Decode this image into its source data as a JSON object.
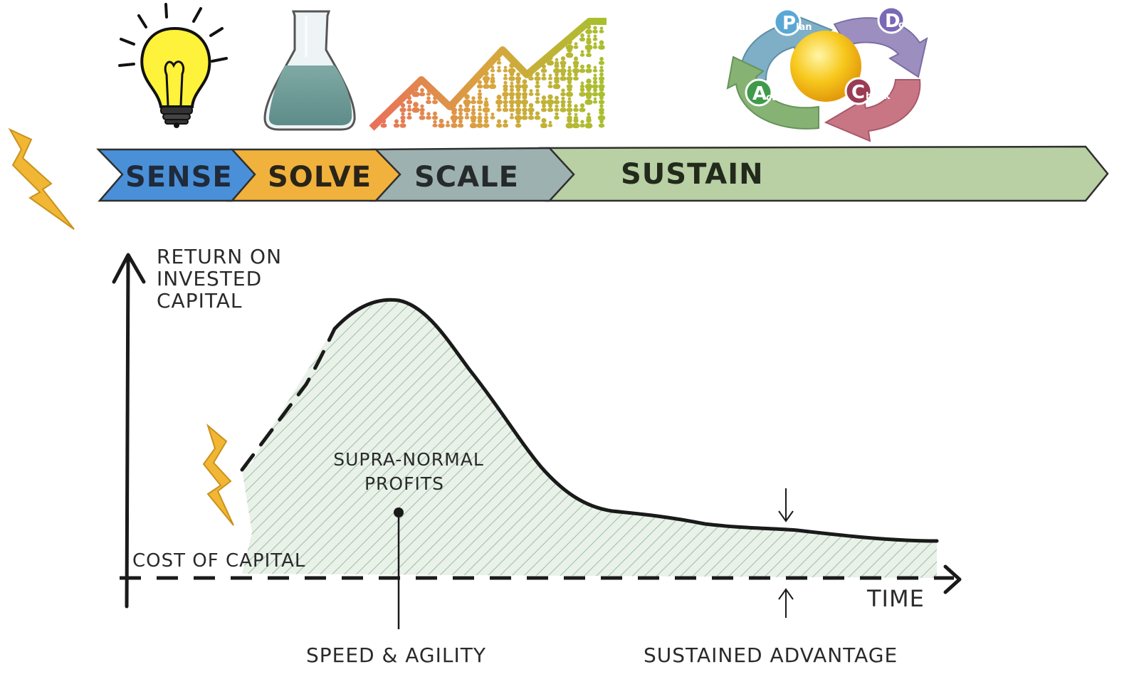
{
  "stages": [
    {
      "label": "SENSE",
      "color": "#4a90d9"
    },
    {
      "label": "SOLVE",
      "color": "#f0b23c"
    },
    {
      "label": "SCALE",
      "color": "#9eb1b1"
    },
    {
      "label": "SUSTAIN",
      "color": "#b9cfa4"
    }
  ],
  "icons": {
    "idea": "lightbulb-icon",
    "experiment": "flask-icon",
    "growth": "growth-chart-icon",
    "cycle": "pdca-cycle-icon",
    "disruption": "lightning-bolt-icon"
  },
  "pdca": {
    "plan": {
      "big": "P",
      "small": "lan",
      "color": "#6fa9c9"
    },
    "do": {
      "big": "D",
      "small": "o",
      "color": "#8e7fb3"
    },
    "check": {
      "big": "C",
      "small": "heck",
      "color": "#c9727f"
    },
    "act": {
      "big": "A",
      "small": "ct",
      "color": "#7faf6d"
    }
  },
  "graph": {
    "y_axis_label": [
      "RETURN ON",
      "INVESTED",
      "CAPITAL"
    ],
    "x_axis_label": "TIME",
    "baseline_label": "COST OF CAPITAL",
    "area_label": [
      "SUPRA-NORMAL",
      "PROFITS"
    ],
    "callout_speed": "SPEED & AGILITY",
    "callout_sustained": "SUSTAINED ADVANTAGE"
  }
}
